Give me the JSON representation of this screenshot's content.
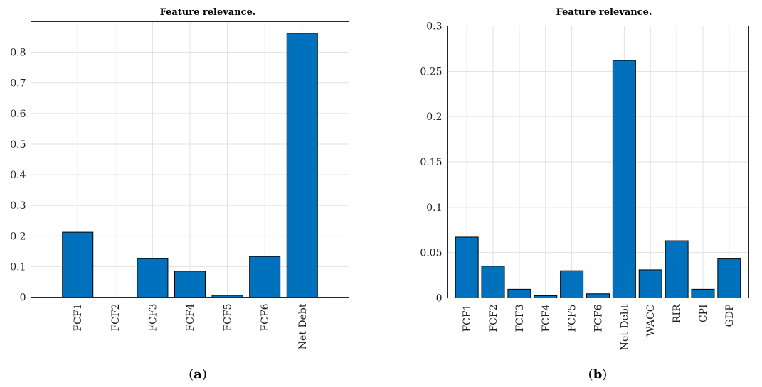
{
  "panels": [
    {
      "label": "a",
      "chart_data": {
        "type": "bar",
        "title": "Feature relevance.",
        "xlabel": "",
        "ylabel": "",
        "categories": [
          "FCF1",
          "FCF2",
          "FCF3",
          "FCF4",
          "FCF5",
          "FCF6",
          "Net Debt"
        ],
        "values": [
          0.212,
          0.0,
          0.126,
          0.085,
          0.006,
          0.133,
          0.862
        ],
        "ylim": [
          0,
          0.9
        ],
        "yticks": [
          0,
          0.1,
          0.2,
          0.3,
          0.4,
          0.5,
          0.6,
          0.7,
          0.8
        ],
        "ytick_labels": [
          "0",
          "0.1",
          "0.2",
          "0.3",
          "0.4",
          "0.5",
          "0.6",
          "0.7",
          "0.8"
        ],
        "grid": true,
        "bar_color": "#0072BD"
      }
    },
    {
      "label": "b",
      "chart_data": {
        "type": "bar",
        "title": "Feature relevance.",
        "xlabel": "",
        "ylabel": "",
        "categories": [
          "FCF1",
          "FCF2",
          "FCF3",
          "FCF4",
          "FCF5",
          "FCF6",
          "Net Debt",
          "WACC",
          "RIR",
          "CPI",
          "GDP"
        ],
        "values": [
          0.067,
          0.035,
          0.0095,
          0.0025,
          0.03,
          0.0045,
          0.262,
          0.031,
          0.063,
          0.0095,
          0.043
        ],
        "ylim": [
          0,
          0.3
        ],
        "yticks": [
          0,
          0.05,
          0.1,
          0.15,
          0.2,
          0.25,
          0.3
        ],
        "ytick_labels": [
          "0",
          "0.05",
          "0.1",
          "0.15",
          "0.2",
          "0.25",
          "0.3"
        ],
        "grid": true,
        "bar_color": "#0072BD"
      }
    }
  ]
}
